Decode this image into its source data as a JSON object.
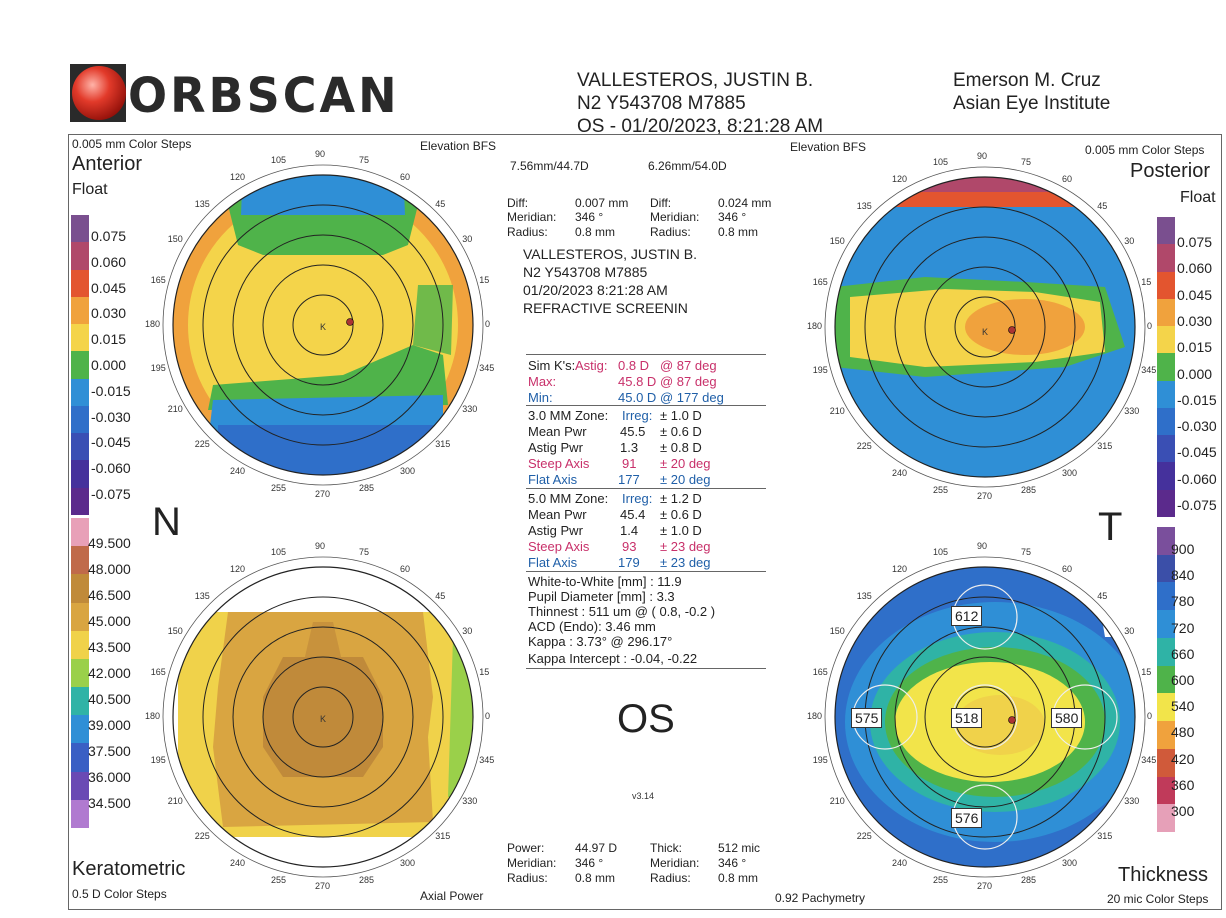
{
  "header": {
    "logo_text": "ORBSCAN",
    "patient_name": "VALLESTEROS, JUSTIN B.",
    "patient_id": "N2 Y543708 M7885",
    "eye_date": "OS - 01/20/2023, 8:21:28 AM",
    "doctor": "Emerson M. Cruz",
    "institute": "Asian Eye Institute"
  },
  "anterior": {
    "steps": "0.005 mm Color Steps",
    "title": "Anterior",
    "subtitle": "Float",
    "bfs_label": "Elevation BFS",
    "scale": [
      "0.075",
      "0.060",
      "0.045",
      "0.030",
      "0.015",
      "0.000",
      "-0.015",
      "-0.030",
      "-0.045",
      "-0.060",
      "-0.075"
    ]
  },
  "posterior": {
    "steps": "0.005 mm Color Steps",
    "title": "Posterior",
    "subtitle": "Float",
    "bfs_label": "Elevation BFS",
    "scale": [
      "0.075",
      "0.060",
      "0.045",
      "0.030",
      "0.015",
      "0.000",
      "-0.015",
      "-0.030",
      "-0.045",
      "-0.060",
      "-0.075"
    ]
  },
  "keratometric": {
    "title": "Keratometric",
    "steps": "0.5 D Color Steps",
    "map_label": "Axial Power",
    "scale": [
      "49.500",
      "48.000",
      "46.500",
      "45.000",
      "43.500",
      "42.000",
      "40.500",
      "39.000",
      "37.500",
      "36.000",
      "34.500"
    ]
  },
  "thickness": {
    "title": "Thickness",
    "steps": "20 mic Color Steps",
    "map_label": "0.92 Pachymetry",
    "scale": [
      "900",
      "840",
      "780",
      "720",
      "660",
      "600",
      "540",
      "480",
      "420",
      "360",
      "300"
    ],
    "values": {
      "top": "612",
      "left": "575",
      "center": "518",
      "right": "580",
      "bottom": "576"
    }
  },
  "orient": {
    "nasal": "N",
    "temporal": "T"
  },
  "center": {
    "bfs_left": "7.56mm/44.7D",
    "bfs_right": "6.26mm/54.0D",
    "diff_left": {
      "diff_label": "Diff:",
      "diff": "0.007 mm",
      "meridian_label": "Meridian:",
      "meridian": "346 °",
      "radius_label": "Radius:",
      "radius": "0.8 mm"
    },
    "diff_right": {
      "diff_label": "Diff:",
      "diff": "0.024 mm",
      "meridian_label": "Meridian:",
      "meridian": "346 °",
      "radius_label": "Radius:",
      "radius": "0.8 mm"
    },
    "patient_name": "VALLESTEROS, JUSTIN B.",
    "patient_id": "N2 Y543708 M7885",
    "datetime": "01/20/2023 8:21:28 AM",
    "exam": "REFRACTIVE  SCREENIN",
    "simk": {
      "label": "Sim K's:",
      "astig_label": "Astig:",
      "astig": "0.8 D",
      "astig_deg": "@ 87 deg",
      "max_label": "Max:",
      "max": "45.8 D",
      "max_deg": "@ 87 deg",
      "min_label": "Min:",
      "min": "45.0 D",
      "min_deg": "@ 177 deg"
    },
    "zone3": {
      "label": "3.0 MM Zone:",
      "irreg_label": "Irreg:",
      "irreg": "± 1.0 D",
      "mean_label": "Mean Pwr",
      "mean": "45.5",
      "mean_pm": "± 0.6 D",
      "astig_label": "Astig Pwr",
      "astig": "1.3",
      "astig_pm": "± 0.8 D",
      "steep_label": "Steep Axis",
      "steep": "91",
      "steep_pm": "± 20 deg",
      "flat_label": "Flat Axis",
      "flat": "177",
      "flat_pm": "± 20 deg"
    },
    "zone5": {
      "label": "5.0 MM Zone:",
      "irreg_label": "Irreg:",
      "irreg": "± 1.2 D",
      "mean_label": "Mean Pwr",
      "mean": "45.4",
      "mean_pm": "± 0.6 D",
      "astig_label": "Astig Pwr",
      "astig": "1.4",
      "astig_pm": "± 1.0 D",
      "steep_label": "Steep Axis",
      "steep": "93",
      "steep_pm": "± 23 deg",
      "flat_label": "Flat Axis",
      "flat": "179",
      "flat_pm": "± 23 deg"
    },
    "misc": [
      "White-to-White [mm] : 11.9",
      "Pupil Diameter [mm] :  3.3",
      "Thinnest : 511 um @ ( 0.8, -0.2 )",
      "ACD (Endo): 3.46 mm",
      "Kappa : 3.73° @ 296.17°",
      "Kappa Intercept : -0.04, -0.22"
    ],
    "eye": "OS",
    "version": "v3.14",
    "bottom_left": {
      "power_label": "Power:",
      "power": "44.97 D",
      "meridian_label": "Meridian:",
      "meridian": "346 °",
      "radius_label": "Radius:",
      "radius": "0.8 mm"
    },
    "bottom_right": {
      "thick_label": "Thick:",
      "thick": "512 mic",
      "meridian_label": "Meridian:",
      "meridian": "346 °",
      "radius_label": "Radius:",
      "radius": "0.8 mm"
    }
  },
  "colors": {
    "elev_scale": [
      "#7a4f8f",
      "#b0486a",
      "#e3552f",
      "#f0a23d",
      "#f4d44a",
      "#4fb34a",
      "#2f8fd6",
      "#2f6fc9",
      "#3a4fb4",
      "#45319c",
      "#5b2a8c"
    ],
    "power_scale": [
      "#e8a0b8",
      "#c06a4a",
      "#c08a3a",
      "#d9a541",
      "#f0d24a",
      "#9ad04a",
      "#2fb3a6",
      "#2f8fd6",
      "#3a5fc4",
      "#6a4ab4",
      "#b07ad0"
    ],
    "thick_scale": [
      "#7a4f9c",
      "#3b4fa8",
      "#2f6fc9",
      "#2f8fd6",
      "#2fb3a6",
      "#4fb34a",
      "#f2e44a",
      "#f0a23d",
      "#d05a3a",
      "#c03a5a",
      "#e6a0b8"
    ]
  }
}
